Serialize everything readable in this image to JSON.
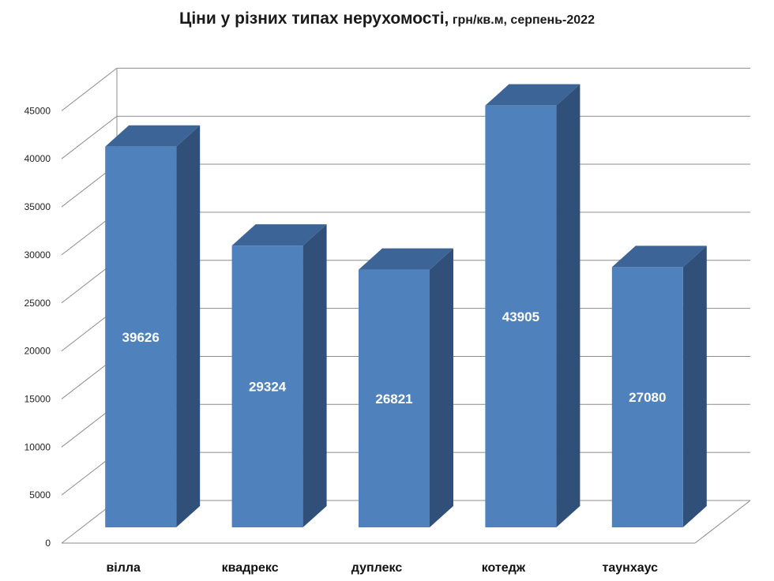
{
  "chart_data": {
    "type": "bar",
    "title": "Ціни у різних типах нерухомості,",
    "subtitle": "грн/кв.м, серпень-2022",
    "categories": [
      "вілла",
      "квадрекс",
      "дуплекс",
      "котедж",
      "таунхаус"
    ],
    "values": [
      39626,
      29324,
      26821,
      43905,
      27080
    ],
    "data_labels": [
      "39626",
      "29324",
      "26821",
      "43905",
      "27080"
    ],
    "y_ticks": [
      "0",
      "5000",
      "10000",
      "15000",
      "20000",
      "25000",
      "30000",
      "35000",
      "40000",
      "45000"
    ],
    "ylim": [
      0,
      45000
    ],
    "grid": true,
    "legend": "none",
    "style": "3d-column",
    "colors": {
      "bar_front": "#4f81bd",
      "bar_side": "#30507a",
      "bar_top": "#3d6496",
      "grid": "#8c8c8c"
    }
  }
}
